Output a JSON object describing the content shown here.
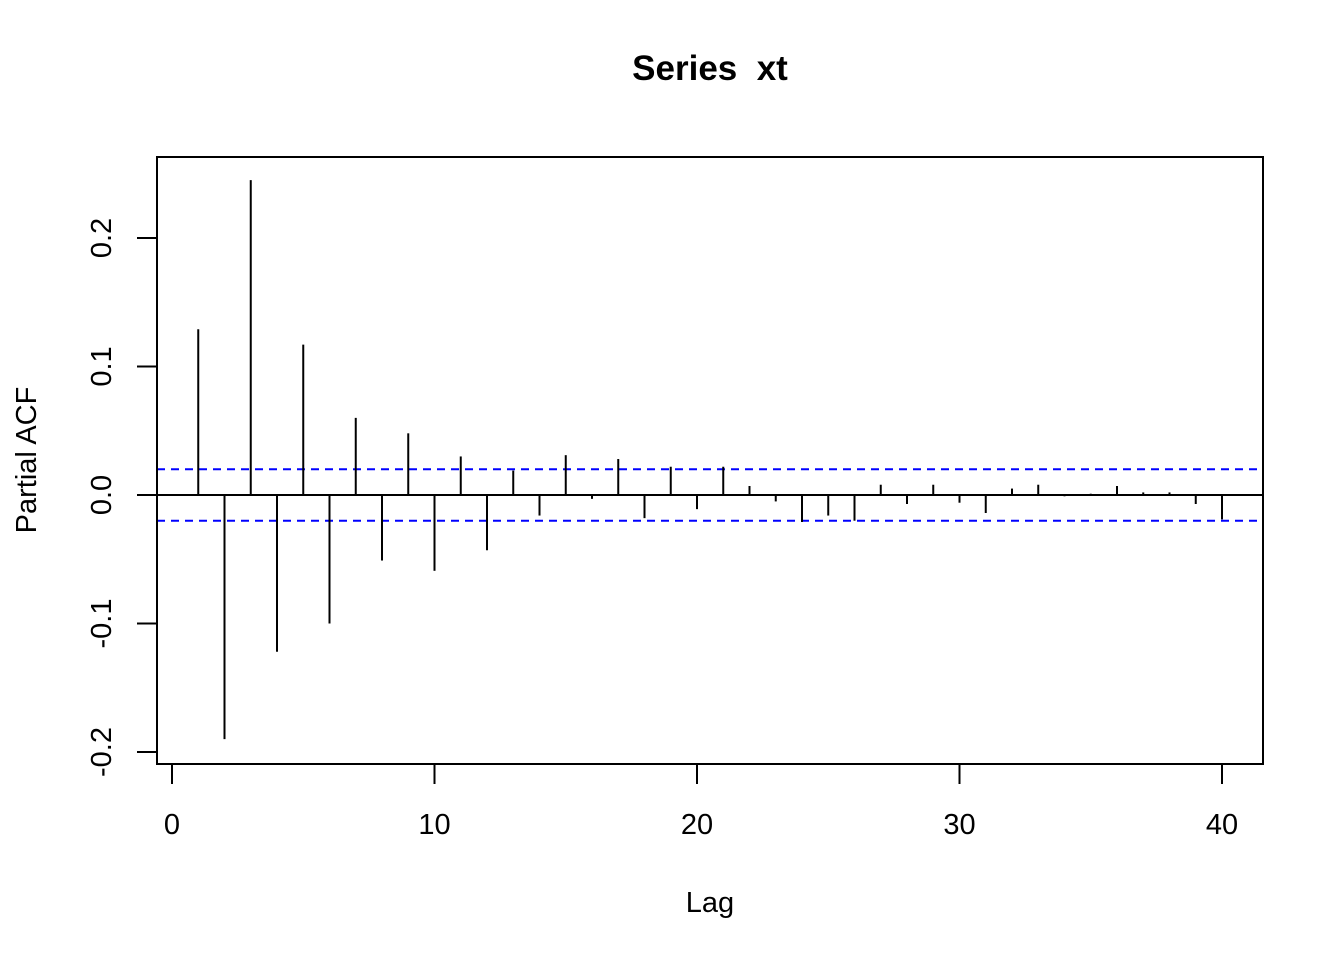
{
  "chart_data": {
    "type": "bar",
    "title": "Series  xt",
    "xlabel": "Lag",
    "ylabel": "Partial ACF",
    "xlim": [
      0,
      40
    ],
    "ylim": [
      -0.2,
      0.25
    ],
    "x_ticks": [
      0,
      10,
      20,
      30,
      40
    ],
    "x_tick_labels": [
      "0",
      "10",
      "20",
      "30",
      "40"
    ],
    "y_ticks": [
      -0.2,
      -0.1,
      0.0,
      0.1,
      0.2
    ],
    "y_tick_labels": [
      "-0.2",
      "-0.1",
      "0.0",
      "0.1",
      "0.2"
    ],
    "confidence_bound": 0.02,
    "confidence_color": "#0000ff",
    "bar_color": "#000000",
    "lags": [
      1,
      2,
      3,
      4,
      5,
      6,
      7,
      8,
      9,
      10,
      11,
      12,
      13,
      14,
      15,
      16,
      17,
      18,
      19,
      20,
      21,
      22,
      23,
      24,
      25,
      26,
      27,
      28,
      29,
      30,
      31,
      32,
      33,
      34,
      35,
      36,
      37,
      38,
      39,
      40
    ],
    "values": [
      0.129,
      -0.19,
      0.245,
      -0.122,
      0.117,
      -0.1,
      0.06,
      -0.051,
      0.048,
      -0.059,
      0.03,
      -0.043,
      0.019,
      -0.016,
      0.031,
      -0.003,
      0.028,
      -0.018,
      0.022,
      -0.011,
      0.022,
      0.007,
      -0.005,
      -0.021,
      -0.016,
      -0.02,
      0.008,
      -0.007,
      0.008,
      -0.006,
      -0.014,
      0.005,
      0.008,
      -0.001,
      0.001,
      0.007,
      0.002,
      0.002,
      -0.007,
      -0.019
    ]
  }
}
